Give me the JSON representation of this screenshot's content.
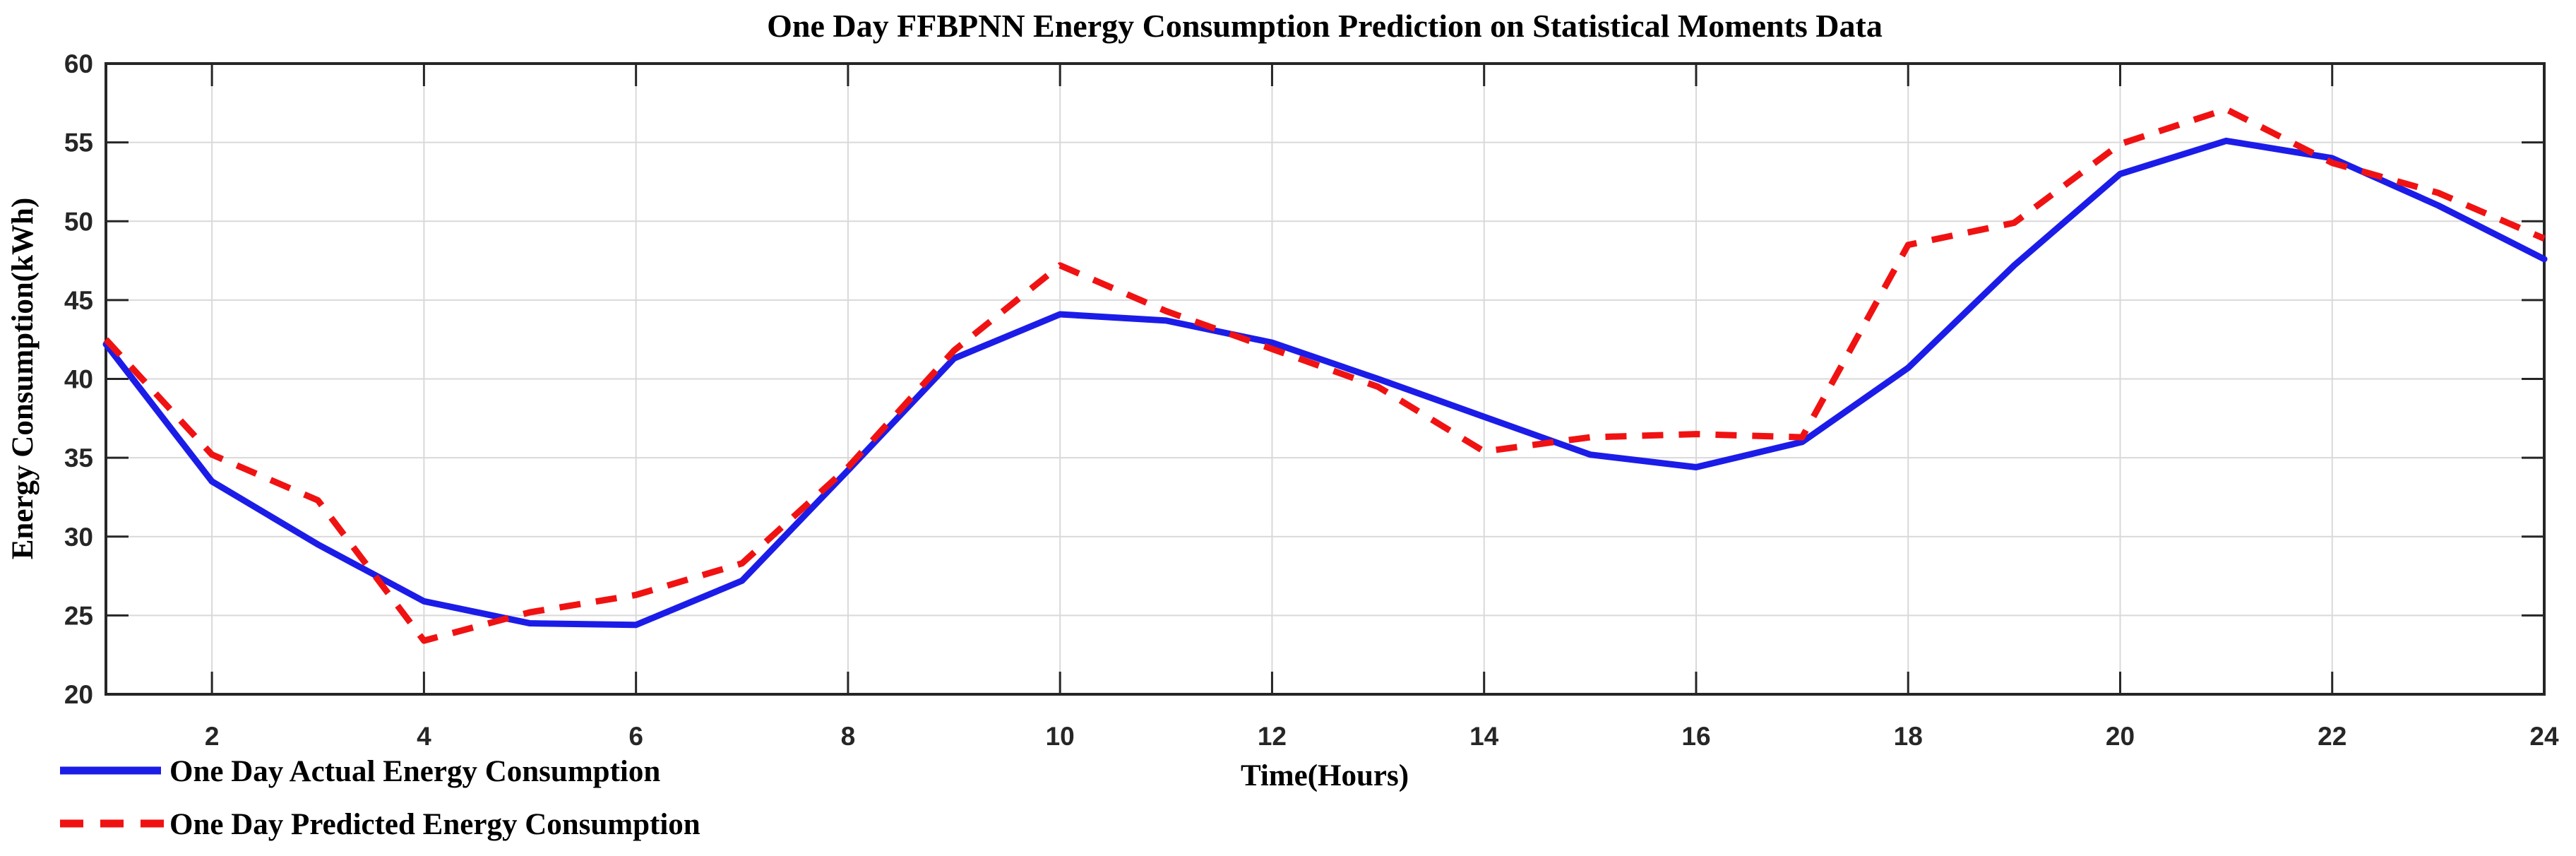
{
  "chart_data": {
    "type": "line",
    "title": "One Day FFBPNN Energy Consumption Prediction on Statistical Moments Data",
    "xlabel": "Time(Hours)",
    "ylabel": "Energy Consumption(kWh)",
    "x": [
      1,
      2,
      3,
      4,
      5,
      6,
      7,
      8,
      9,
      10,
      11,
      12,
      13,
      14,
      15,
      16,
      17,
      18,
      19,
      20,
      21,
      22,
      23,
      24
    ],
    "series": [
      {
        "name": "One Day Actual Energy Consumption",
        "style": "solid",
        "color": "#1c1ce8",
        "values": [
          42.2,
          33.5,
          29.5,
          25.9,
          24.5,
          24.4,
          27.2,
          34.2,
          41.3,
          44.1,
          43.7,
          42.3,
          40.0,
          37.6,
          35.2,
          34.4,
          36.0,
          40.7,
          47.2,
          53.0,
          55.1,
          54.0,
          51.0,
          47.6
        ]
      },
      {
        "name": "One Day Predicted Energy Consumption",
        "style": "dashed",
        "color": "#f01212",
        "values": [
          42.5,
          35.2,
          32.3,
          23.4,
          25.2,
          26.3,
          28.3,
          34.4,
          41.8,
          47.2,
          44.3,
          41.9,
          39.5,
          35.4,
          36.3,
          36.5,
          36.3,
          48.5,
          49.9,
          54.9,
          57.1,
          53.7,
          51.8,
          48.9
        ]
      }
    ],
    "xlim": [
      1,
      24
    ],
    "ylim": [
      20,
      60
    ],
    "xticks": [
      2,
      4,
      6,
      8,
      10,
      12,
      14,
      16,
      18,
      20,
      22,
      24
    ],
    "yticks": [
      20,
      25,
      30,
      35,
      40,
      45,
      50,
      55,
      60
    ],
    "grid": true,
    "legend_position": "below-left",
    "axis_color": "#262626",
    "grid_color": "#d9d9d9",
    "tick_label_color": "#262626",
    "background_color": "#ffffff"
  }
}
